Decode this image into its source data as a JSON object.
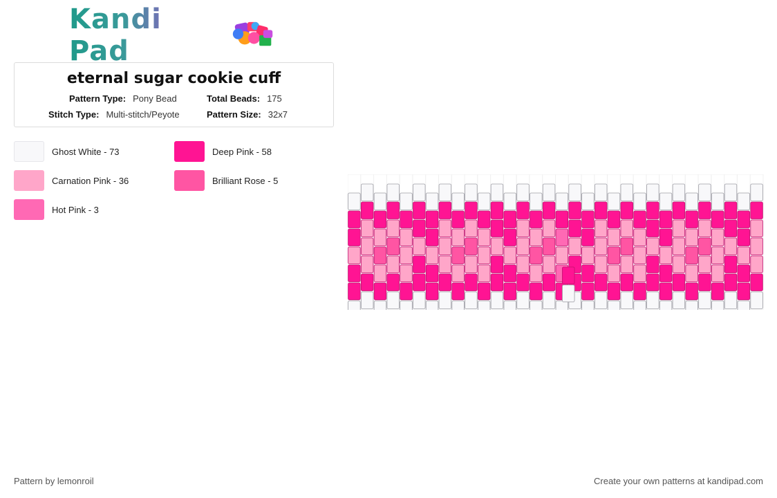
{
  "brand": {
    "name": "Kandi Pad"
  },
  "pattern": {
    "title": "eternal sugar cookie cuff",
    "fields": [
      {
        "label": "Pattern Type:",
        "value": "Pony Bead"
      },
      {
        "label": "Total Beads:",
        "value": "175"
      },
      {
        "label": "Stitch Type:",
        "value": "Multi-stitch/Peyote"
      },
      {
        "label": "Pattern Size:",
        "value": "32x7"
      }
    ]
  },
  "legend": [
    {
      "label": "Ghost White - 73",
      "color": "#f8f8fa"
    },
    {
      "label": "Deep Pink - 58",
      "color": "#ff1493"
    },
    {
      "label": "Carnation Pink - 36",
      "color": "#ffa6c9"
    },
    {
      "label": "Brilliant Rose - 5",
      "color": "#ff55a3"
    },
    {
      "label": "Hot Pink - 3",
      "color": "#ff69b4"
    }
  ],
  "footer": {
    "author": "Pattern by lemonroil",
    "cta": "Create your own patterns at kandipad.com"
  }
}
